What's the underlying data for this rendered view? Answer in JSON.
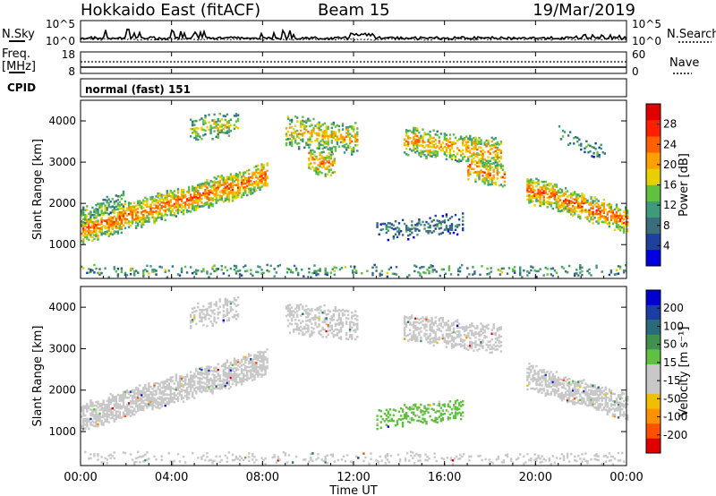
{
  "header": {
    "title": "Hokkaido East (fitACF)",
    "beam": "Beam 15",
    "date": "19/Mar/2019"
  },
  "noise_panel": {
    "left_label": "N.Sky",
    "right_label": "N.Search",
    "left_ticks": [
      "10^5",
      "10^0"
    ],
    "right_ticks": [
      "10^5",
      "10^0"
    ]
  },
  "freq_panel": {
    "left_label_1": "Freq.",
    "left_label_2": "[MHz]",
    "left_ticks": [
      "18",
      "8"
    ],
    "right_label": "Nave",
    "right_ticks": [
      "60",
      "0"
    ]
  },
  "cpid_panel": {
    "label": "CPID",
    "text": "normal (fast) 151"
  },
  "colors": {
    "power_scale": [
      "#0000e0",
      "#2040a0",
      "#3a6e7e",
      "#3f9a7a",
      "#60c040",
      "#e8d000",
      "#ffa000",
      "#ff6000",
      "#ff2000",
      "#e00000"
    ],
    "velocity_scale": [
      "#e00000",
      "#ff5000",
      "#ff9000",
      "#f0c000",
      "#c8c8c8",
      "#c8c8c8",
      "#60c040",
      "#409050",
      "#2a6b7a",
      "#1a3fa0",
      "#0000d0"
    ]
  },
  "chart_data": [
    {
      "type": "heatmap",
      "panel": "power",
      "ylabel": "Slant Range [km]",
      "xlabel": "",
      "x_ticks": [
        "00:00",
        "04:00",
        "08:00",
        "12:00",
        "16:00",
        "20:00",
        "00:00"
      ],
      "x_range_hours": [
        0,
        24
      ],
      "ylim": [
        180,
        4500
      ],
      "y_ticks": [
        1000,
        2000,
        3000,
        4000
      ],
      "colorbar": {
        "label": "Power [dB]",
        "range": [
          0,
          32
        ],
        "ticks": [
          4,
          8,
          12,
          16,
          20,
          24,
          28
        ]
      },
      "scatter_regions": [
        {
          "t": [
            0,
            8.2
          ],
          "r0_start": 1050,
          "r0_end": 2350,
          "width": 600,
          "value": 24,
          "density": 0.65
        },
        {
          "t": [
            0,
            2
          ],
          "r0_start": 1500,
          "r0_end": 1900,
          "width": 400,
          "value": 14,
          "density": 0.4
        },
        {
          "t": [
            4.8,
            6.9
          ],
          "r0_start": 3500,
          "r0_end": 3700,
          "width": 500,
          "value": 18,
          "density": 0.35
        },
        {
          "t": [
            9,
            12.2
          ],
          "r0_start": 3400,
          "r0_end": 3200,
          "width": 700,
          "value": 20,
          "density": 0.4
        },
        {
          "t": [
            10,
            11.2
          ],
          "r0_start": 2800,
          "r0_end": 2600,
          "width": 500,
          "value": 24,
          "density": 0.45
        },
        {
          "t": [
            13,
            16.8
          ],
          "r0_start": 1100,
          "r0_end": 1300,
          "width": 450,
          "value": 10,
          "density": 0.3
        },
        {
          "t": [
            14.2,
            18.5
          ],
          "r0_start": 3200,
          "r0_end": 2900,
          "width": 600,
          "value": 22,
          "density": 0.45
        },
        {
          "t": [
            17,
            18.6
          ],
          "r0_start": 2600,
          "r0_end": 2400,
          "width": 500,
          "value": 24,
          "density": 0.45
        },
        {
          "t": [
            19.6,
            24
          ],
          "r0_start": 2050,
          "r0_end": 1300,
          "width": 550,
          "value": 25,
          "density": 0.6
        },
        {
          "t": [
            21,
            23
          ],
          "r0_start": 3500,
          "r0_end": 3000,
          "width": 350,
          "value": 12,
          "density": 0.25
        },
        {
          "t": [
            0,
            24
          ],
          "r0_start": 250,
          "r0_end": 250,
          "width": 220,
          "value": 14,
          "density": 0.2
        }
      ]
    },
    {
      "type": "heatmap",
      "panel": "velocity",
      "ylabel": "Slant Range [km]",
      "xlabel": "Time UT",
      "x_ticks": [
        "00:00",
        "04:00",
        "08:00",
        "12:00",
        "16:00",
        "20:00",
        "00:00"
      ],
      "x_range_hours": [
        0,
        24
      ],
      "ylim": [
        180,
        4500
      ],
      "y_ticks": [
        1000,
        2000,
        3000,
        4000
      ],
      "colorbar": {
        "label": "Velocity [m s⁻¹]",
        "range": [
          -250,
          250
        ],
        "ticks": [
          200,
          100,
          50,
          15,
          -15,
          -50,
          -100,
          -200
        ]
      },
      "scatter_regions": [
        {
          "t": [
            0,
            8.2
          ],
          "r0_start": 1050,
          "r0_end": 2350,
          "width": 600,
          "value": 0,
          "density": 0.65
        },
        {
          "t": [
            4.8,
            6.9
          ],
          "r0_start": 3500,
          "r0_end": 3700,
          "width": 500,
          "value": -30,
          "density": 0.3
        },
        {
          "t": [
            9,
            12.2
          ],
          "r0_start": 3400,
          "r0_end": 3200,
          "width": 700,
          "value": 0,
          "density": 0.4
        },
        {
          "t": [
            13,
            16.8
          ],
          "r0_start": 1100,
          "r0_end": 1300,
          "width": 450,
          "value": 40,
          "density": 0.3
        },
        {
          "t": [
            14.2,
            18.5
          ],
          "r0_start": 3200,
          "r0_end": 2900,
          "width": 600,
          "value": 0,
          "density": 0.45
        },
        {
          "t": [
            19.6,
            24
          ],
          "r0_start": 2050,
          "r0_end": 1300,
          "width": 550,
          "value": 0,
          "density": 0.6
        },
        {
          "t": [
            0,
            24
          ],
          "r0_start": 250,
          "r0_end": 250,
          "width": 220,
          "value": -40,
          "density": 0.2
        }
      ]
    }
  ]
}
